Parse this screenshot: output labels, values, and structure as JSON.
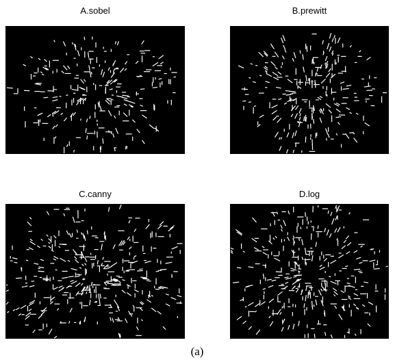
{
  "panels": [
    {
      "title": "A.sobel"
    },
    {
      "title": "B.prewitt"
    },
    {
      "title": "C.canny"
    },
    {
      "title": "D.log"
    }
  ],
  "caption": "(a)"
}
